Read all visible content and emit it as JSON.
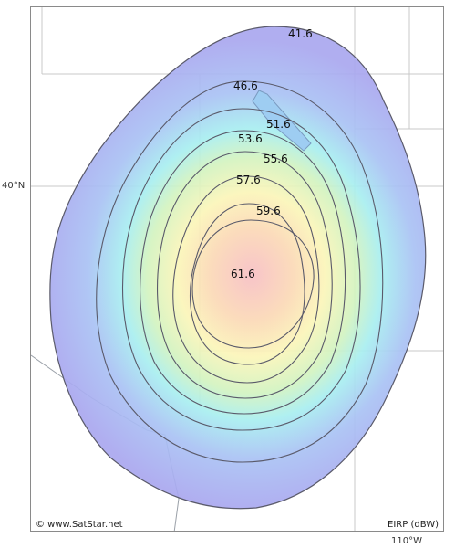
{
  "map": {
    "latitude_label": "40°N",
    "longitude_label": "110°W",
    "copyright": "© www.SatStar.net",
    "legend_unit": "EIRP (dBW)",
    "contour_labels": [
      "41.6",
      "46.6",
      "51.6",
      "53.6",
      "55.6",
      "57.6",
      "59.6",
      "61.6"
    ],
    "colors": {
      "outer": "#a9a7ef",
      "mid_cyan": "#a8eef0",
      "mid_green": "#cdf2c0",
      "yellow": "#fbf6bb",
      "orange": "#fbd7b7",
      "center": "#f7c0c0",
      "contour_line": "#5a5a6a",
      "grid_line": "#c8c8c8",
      "border_line": "#9aa0a8",
      "lake": "#9ecdf2"
    }
  }
}
